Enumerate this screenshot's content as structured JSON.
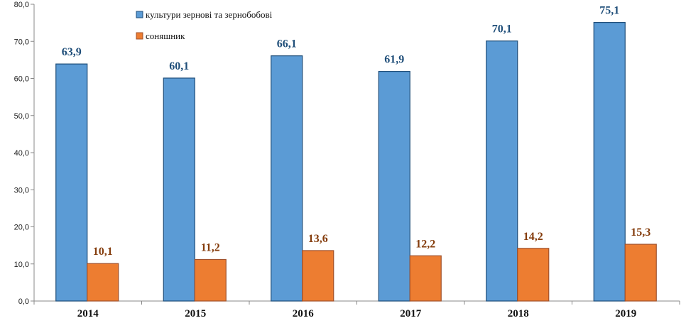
{
  "chart_data": {
    "type": "bar",
    "title": "",
    "xlabel": "",
    "ylabel": "",
    "categories": [
      "2014",
      "2015",
      "2016",
      "2017",
      "2018",
      "2019"
    ],
    "series": [
      {
        "name": "культури зернові та зернобобові",
        "values": [
          63.9,
          60.1,
          66.1,
          61.9,
          70.1,
          75.1
        ],
        "labels": [
          "63,9",
          "60,1",
          "66,1",
          "61,9",
          "70,1",
          "75,1"
        ],
        "color": "#5B9BD5",
        "border": "#1F4E79",
        "label_color": "#1F4E79"
      },
      {
        "name": "соняшник",
        "values": [
          10.1,
          11.2,
          13.6,
          12.2,
          14.2,
          15.3
        ],
        "labels": [
          "10,1",
          "11,2",
          "13,6",
          "12,2",
          "14,2",
          "15,3"
        ],
        "color": "#ED7D31",
        "border": "#A0522D",
        "label_color": "#843C0C"
      }
    ],
    "ylim": [
      0,
      80
    ],
    "yticks": [
      0,
      10,
      20,
      30,
      40,
      50,
      60,
      70,
      80
    ],
    "ytick_labels": [
      "0,0",
      "10,0",
      "20,0",
      "30,0",
      "40,0",
      "50,0",
      "60,0",
      "70,0",
      "80,0"
    ],
    "grid": false,
    "legend_position": "top-left"
  }
}
